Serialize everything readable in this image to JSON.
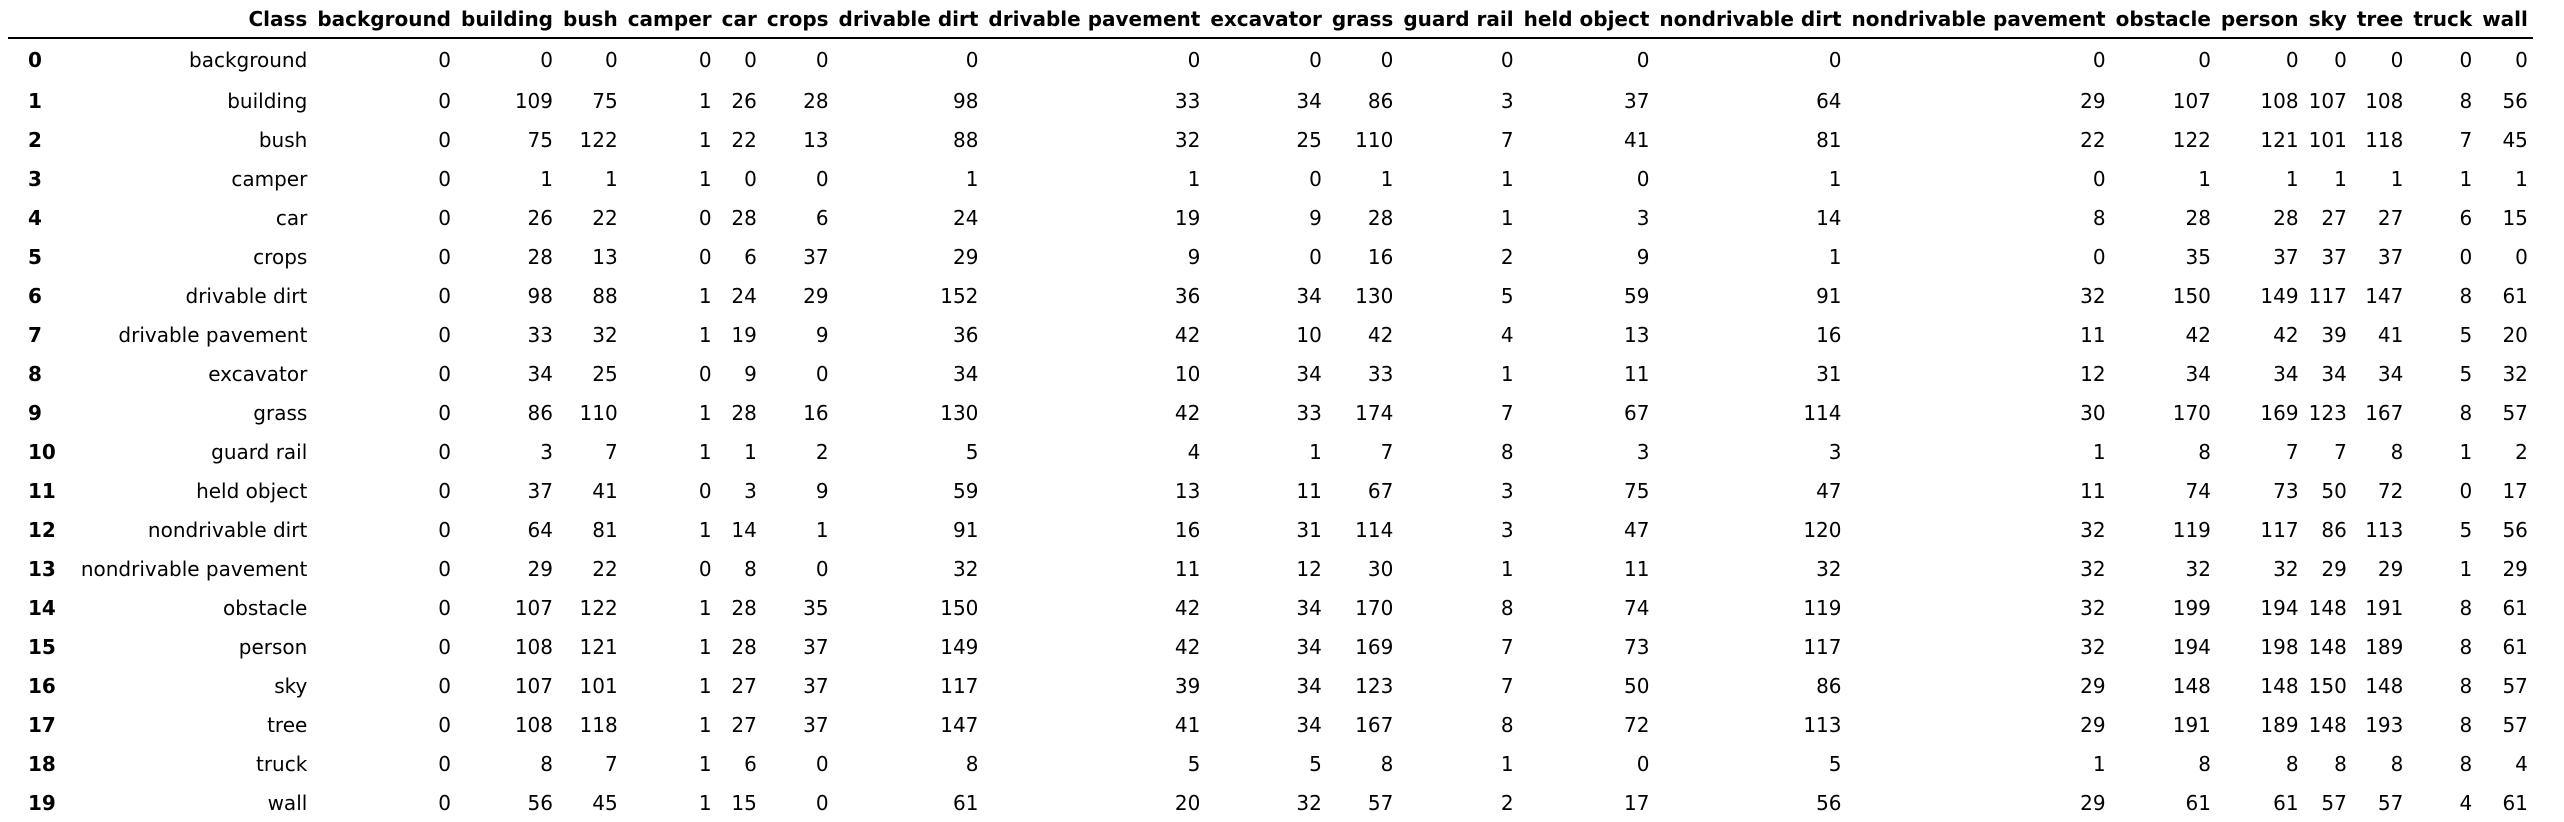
{
  "table": {
    "header_index": "",
    "columns": [
      "Class",
      "background",
      "building",
      "bush",
      "camper",
      "car",
      "crops",
      "drivable dirt",
      "drivable pavement",
      "excavator",
      "grass",
      "guard rail",
      "held object",
      "nondrivable dirt",
      "nondrivable pavement",
      "obstacle",
      "person",
      "sky",
      "tree",
      "truck",
      "wall"
    ],
    "rows": [
      {
        "index": "0",
        "cells": [
          "background",
          "0",
          "0",
          "0",
          "0",
          "0",
          "0",
          "0",
          "0",
          "0",
          "0",
          "0",
          "0",
          "0",
          "0",
          "0",
          "0",
          "0",
          "0",
          "0",
          "0"
        ]
      },
      {
        "index": "1",
        "cells": [
          "building",
          "0",
          "109",
          "75",
          "1",
          "26",
          "28",
          "98",
          "33",
          "34",
          "86",
          "3",
          "37",
          "64",
          "29",
          "107",
          "108",
          "107",
          "108",
          "8",
          "56"
        ]
      },
      {
        "index": "2",
        "cells": [
          "bush",
          "0",
          "75",
          "122",
          "1",
          "22",
          "13",
          "88",
          "32",
          "25",
          "110",
          "7",
          "41",
          "81",
          "22",
          "122",
          "121",
          "101",
          "118",
          "7",
          "45"
        ]
      },
      {
        "index": "3",
        "cells": [
          "camper",
          "0",
          "1",
          "1",
          "1",
          "0",
          "0",
          "1",
          "1",
          "0",
          "1",
          "1",
          "0",
          "1",
          "0",
          "1",
          "1",
          "1",
          "1",
          "1",
          "1"
        ]
      },
      {
        "index": "4",
        "cells": [
          "car",
          "0",
          "26",
          "22",
          "0",
          "28",
          "6",
          "24",
          "19",
          "9",
          "28",
          "1",
          "3",
          "14",
          "8",
          "28",
          "28",
          "27",
          "27",
          "6",
          "15"
        ]
      },
      {
        "index": "5",
        "cells": [
          "crops",
          "0",
          "28",
          "13",
          "0",
          "6",
          "37",
          "29",
          "9",
          "0",
          "16",
          "2",
          "9",
          "1",
          "0",
          "35",
          "37",
          "37",
          "37",
          "0",
          "0"
        ]
      },
      {
        "index": "6",
        "cells": [
          "drivable dirt",
          "0",
          "98",
          "88",
          "1",
          "24",
          "29",
          "152",
          "36",
          "34",
          "130",
          "5",
          "59",
          "91",
          "32",
          "150",
          "149",
          "117",
          "147",
          "8",
          "61"
        ]
      },
      {
        "index": "7",
        "cells": [
          "drivable pavement",
          "0",
          "33",
          "32",
          "1",
          "19",
          "9",
          "36",
          "42",
          "10",
          "42",
          "4",
          "13",
          "16",
          "11",
          "42",
          "42",
          "39",
          "41",
          "5",
          "20"
        ]
      },
      {
        "index": "8",
        "cells": [
          "excavator",
          "0",
          "34",
          "25",
          "0",
          "9",
          "0",
          "34",
          "10",
          "34",
          "33",
          "1",
          "11",
          "31",
          "12",
          "34",
          "34",
          "34",
          "34",
          "5",
          "32"
        ]
      },
      {
        "index": "9",
        "cells": [
          "grass",
          "0",
          "86",
          "110",
          "1",
          "28",
          "16",
          "130",
          "42",
          "33",
          "174",
          "7",
          "67",
          "114",
          "30",
          "170",
          "169",
          "123",
          "167",
          "8",
          "57"
        ]
      },
      {
        "index": "10",
        "cells": [
          "guard rail",
          "0",
          "3",
          "7",
          "1",
          "1",
          "2",
          "5",
          "4",
          "1",
          "7",
          "8",
          "3",
          "3",
          "1",
          "8",
          "7",
          "7",
          "8",
          "1",
          "2"
        ]
      },
      {
        "index": "11",
        "cells": [
          "held object",
          "0",
          "37",
          "41",
          "0",
          "3",
          "9",
          "59",
          "13",
          "11",
          "67",
          "3",
          "75",
          "47",
          "11",
          "74",
          "73",
          "50",
          "72",
          "0",
          "17"
        ]
      },
      {
        "index": "12",
        "cells": [
          "nondrivable dirt",
          "0",
          "64",
          "81",
          "1",
          "14",
          "1",
          "91",
          "16",
          "31",
          "114",
          "3",
          "47",
          "120",
          "32",
          "119",
          "117",
          "86",
          "113",
          "5",
          "56"
        ]
      },
      {
        "index": "13",
        "cells": [
          "nondrivable pavement",
          "0",
          "29",
          "22",
          "0",
          "8",
          "0",
          "32",
          "11",
          "12",
          "30",
          "1",
          "11",
          "32",
          "32",
          "32",
          "32",
          "29",
          "29",
          "1",
          "29"
        ]
      },
      {
        "index": "14",
        "cells": [
          "obstacle",
          "0",
          "107",
          "122",
          "1",
          "28",
          "35",
          "150",
          "42",
          "34",
          "170",
          "8",
          "74",
          "119",
          "32",
          "199",
          "194",
          "148",
          "191",
          "8",
          "61"
        ]
      },
      {
        "index": "15",
        "cells": [
          "person",
          "0",
          "108",
          "121",
          "1",
          "28",
          "37",
          "149",
          "42",
          "34",
          "169",
          "7",
          "73",
          "117",
          "32",
          "194",
          "198",
          "148",
          "189",
          "8",
          "61"
        ]
      },
      {
        "index": "16",
        "cells": [
          "sky",
          "0",
          "107",
          "101",
          "1",
          "27",
          "37",
          "117",
          "39",
          "34",
          "123",
          "7",
          "50",
          "86",
          "29",
          "148",
          "148",
          "150",
          "148",
          "8",
          "57"
        ]
      },
      {
        "index": "17",
        "cells": [
          "tree",
          "0",
          "108",
          "118",
          "1",
          "27",
          "37",
          "147",
          "41",
          "34",
          "167",
          "8",
          "72",
          "113",
          "29",
          "191",
          "189",
          "148",
          "193",
          "8",
          "57"
        ]
      },
      {
        "index": "18",
        "cells": [
          "truck",
          "0",
          "8",
          "7",
          "1",
          "6",
          "0",
          "8",
          "5",
          "5",
          "8",
          "1",
          "0",
          "5",
          "1",
          "8",
          "8",
          "8",
          "8",
          "8",
          "4"
        ]
      },
      {
        "index": "19",
        "cells": [
          "wall",
          "0",
          "56",
          "45",
          "1",
          "15",
          "0",
          "61",
          "20",
          "32",
          "57",
          "2",
          "17",
          "56",
          "29",
          "61",
          "61",
          "57",
          "57",
          "4",
          "61"
        ]
      }
    ]
  }
}
